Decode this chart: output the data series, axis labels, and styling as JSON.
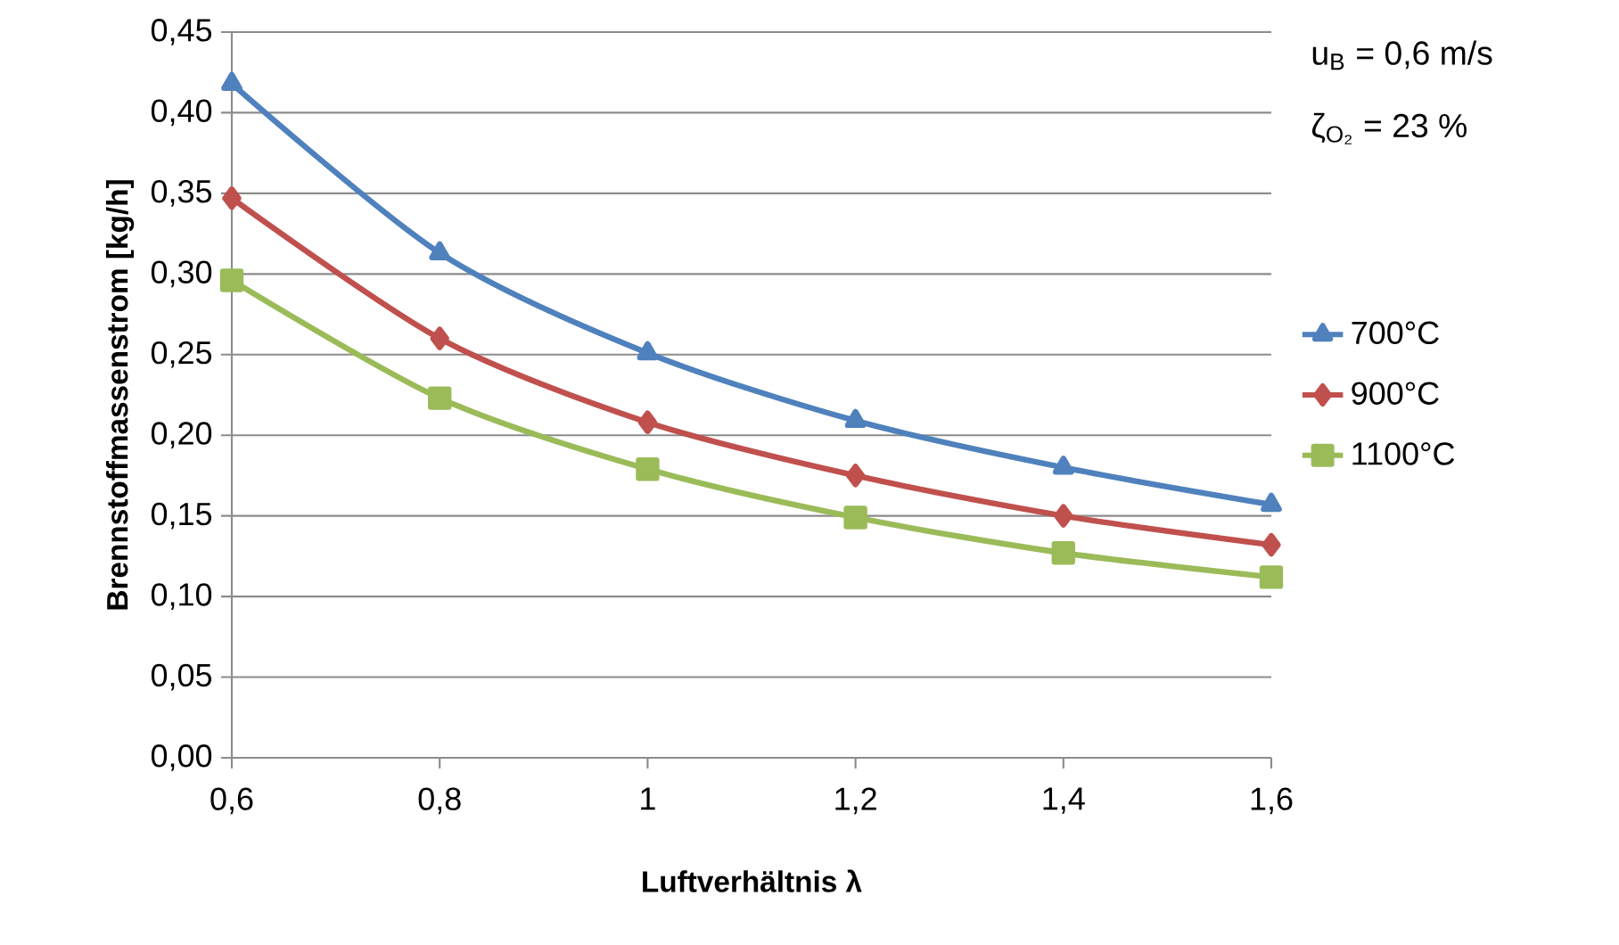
{
  "chart_data": {
    "type": "line",
    "xlabel": "Luftverhältnis **λ**",
    "ylabel": "Brennstoffmassenstrom [kg/h]",
    "annotations": [
      "u$_{B}$ = 0,6 m/s",
      "ζ$_{O₂}$ = 23 %"
    ],
    "x": [
      0.6,
      0.8,
      1.0,
      1.2,
      1.4,
      1.6
    ],
    "series": [
      {
        "name": "700°C",
        "color": "#4f81bd",
        "marker": "triangle",
        "values": [
          0.418,
          0.313,
          0.251,
          0.209,
          0.18,
          0.157
        ]
      },
      {
        "name": "900°C",
        "color": "#c0504d",
        "marker": "diamond",
        "values": [
          0.347,
          0.26,
          0.208,
          0.175,
          0.15,
          0.132
        ]
      },
      {
        "name": "1100°C",
        "color": "#9bbb59",
        "marker": "square",
        "values": [
          0.296,
          0.223,
          0.179,
          0.149,
          0.127,
          0.112
        ]
      }
    ],
    "xlim": [
      0.6,
      1.6
    ],
    "xticks": [
      {
        "value": 0.6,
        "label": "0,6"
      },
      {
        "value": 0.8,
        "label": "0,8"
      },
      {
        "value": 1,
        "label": "1"
      },
      {
        "value": 1.2,
        "label": "1,2"
      },
      {
        "value": 1.4,
        "label": "1,4"
      },
      {
        "value": 1.6,
        "label": "1,6"
      }
    ],
    "ylim": [
      0,
      0.45
    ],
    "yticks": [
      {
        "value": 0,
        "label": "0,00"
      },
      {
        "value": 0.05,
        "label": "0,05"
      },
      {
        "value": 0.1,
        "label": "0,10"
      },
      {
        "value": 0.15,
        "label": "0,15"
      },
      {
        "value": 0.2,
        "label": "0,20"
      },
      {
        "value": 0.25,
        "label": "0,25"
      },
      {
        "value": 0.3,
        "label": "0,30"
      },
      {
        "value": 0.35,
        "label": "0,35"
      },
      {
        "value": 0.4,
        "label": "0,40"
      },
      {
        "value": 0.45,
        "label": "0,45"
      }
    ],
    "grid": "y",
    "legend": "right",
    "line_style": "solid"
  }
}
